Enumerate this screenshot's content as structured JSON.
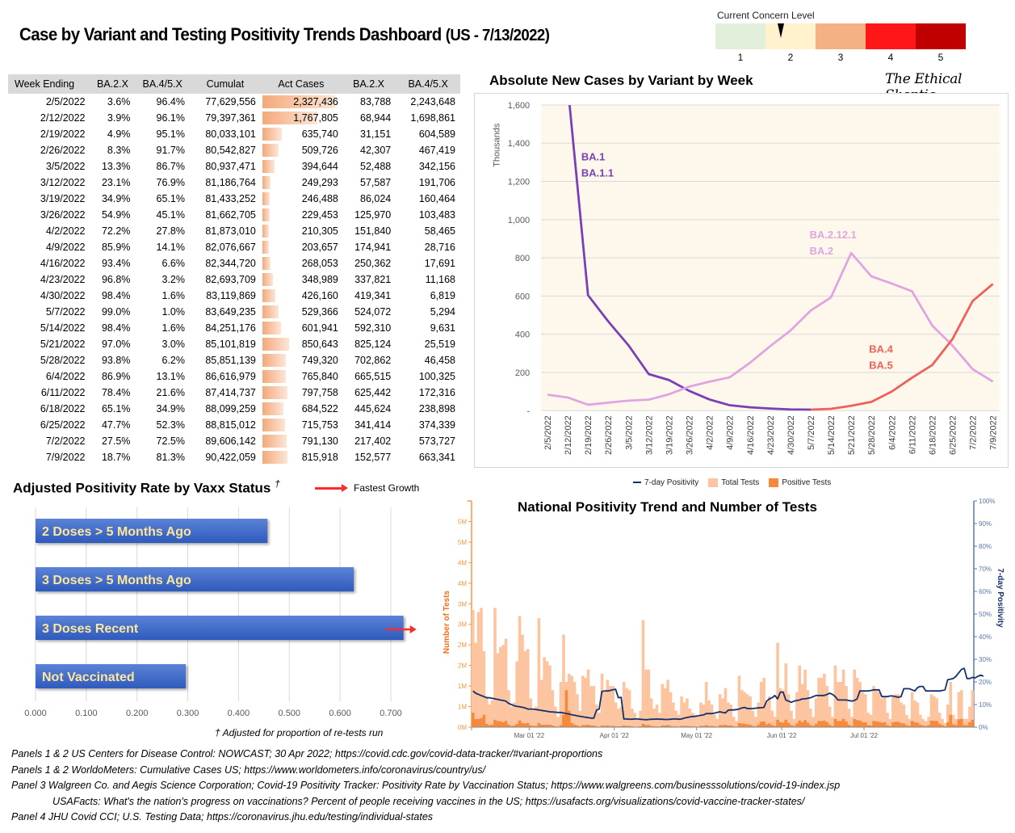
{
  "header": {
    "title": "Case by Variant and Testing Positivity Trends Dashboard",
    "title_suffix": "(US - 7/13/2022)"
  },
  "concern": {
    "label": "Current Concern Level",
    "levels": [
      "1",
      "2",
      "3",
      "4",
      "5"
    ],
    "colors": [
      "#e2efda",
      "#fff2cc",
      "#f4b183",
      "#ff1616",
      "#c00000"
    ],
    "current_level": 2,
    "marker_value": 1.8
  },
  "table": {
    "headers": [
      "Week Ending",
      "BA.2.X",
      "BA.4/5.X",
      "Cumulat",
      "Act Cases",
      "BA.2.X",
      "BA.4/5.X"
    ],
    "databar_max": 2327436,
    "rows": [
      [
        "2/5/2022",
        "3.6%",
        "96.4%",
        "77,629,556",
        "2,327,436",
        "83,788",
        "2,243,648"
      ],
      [
        "2/12/2022",
        "3.9%",
        "96.1%",
        "79,397,361",
        "1,767,805",
        "68,944",
        "1,698,861"
      ],
      [
        "2/19/2022",
        "4.9%",
        "95.1%",
        "80,033,101",
        "635,740",
        "31,151",
        "604,589"
      ],
      [
        "2/26/2022",
        "8.3%",
        "91.7%",
        "80,542,827",
        "509,726",
        "42,307",
        "467,419"
      ],
      [
        "3/5/2022",
        "13.3%",
        "86.7%",
        "80,937,471",
        "394,644",
        "52,488",
        "342,156"
      ],
      [
        "3/12/2022",
        "23.1%",
        "76.9%",
        "81,186,764",
        "249,293",
        "57,587",
        "191,706"
      ],
      [
        "3/19/2022",
        "34.9%",
        "65.1%",
        "81,433,252",
        "246,488",
        "86,024",
        "160,464"
      ],
      [
        "3/26/2022",
        "54.9%",
        "45.1%",
        "81,662,705",
        "229,453",
        "125,970",
        "103,483"
      ],
      [
        "4/2/2022",
        "72.2%",
        "27.8%",
        "81,873,010",
        "210,305",
        "151,840",
        "58,465"
      ],
      [
        "4/9/2022",
        "85.9%",
        "14.1%",
        "82,076,667",
        "203,657",
        "174,941",
        "28,716"
      ],
      [
        "4/16/2022",
        "93.4%",
        "6.6%",
        "82,344,720",
        "268,053",
        "250,362",
        "17,691"
      ],
      [
        "4/23/2022",
        "96.8%",
        "3.2%",
        "82,693,709",
        "348,989",
        "337,821",
        "11,168"
      ],
      [
        "4/30/2022",
        "98.4%",
        "1.6%",
        "83,119,869",
        "426,160",
        "419,341",
        "6,819"
      ],
      [
        "5/7/2022",
        "99.0%",
        "1.0%",
        "83,649,235",
        "529,366",
        "524,072",
        "5,294"
      ],
      [
        "5/14/2022",
        "98.4%",
        "1.6%",
        "84,251,176",
        "601,941",
        "592,310",
        "9,631"
      ],
      [
        "5/21/2022",
        "97.0%",
        "3.0%",
        "85,101,819",
        "850,643",
        "825,124",
        "25,519"
      ],
      [
        "5/28/2022",
        "93.8%",
        "6.2%",
        "85,851,139",
        "749,320",
        "702,862",
        "46,458"
      ],
      [
        "6/4/2022",
        "86.9%",
        "13.1%",
        "86,616,979",
        "765,840",
        "665,515",
        "100,325"
      ],
      [
        "6/11/2022",
        "78.4%",
        "21.6%",
        "87,414,737",
        "797,758",
        "625,442",
        "172,316"
      ],
      [
        "6/18/2022",
        "65.1%",
        "34.9%",
        "88,099,259",
        "684,522",
        "445,624",
        "238,898"
      ],
      [
        "6/25/2022",
        "47.7%",
        "52.3%",
        "88,815,012",
        "715,753",
        "341,414",
        "374,339"
      ],
      [
        "7/2/2022",
        "27.5%",
        "72.5%",
        "89,606,142",
        "791,130",
        "217,402",
        "573,727"
      ],
      [
        "7/9/2022",
        "18.7%",
        "81.3%",
        "90,422,059",
        "815,918",
        "152,577",
        "663,341"
      ]
    ]
  },
  "logo": "The Ethical Skeptic",
  "positivity_panel": {
    "title": "Adjusted Positivity Rate by Vaxx Status",
    "dagger": "†",
    "legend_label": "Fastest Growth",
    "footnote": "† Adjusted for proportion of re-tests run"
  },
  "testing_panel": {
    "legend": [
      "7-day Positivity",
      "Total Tests",
      "Positive Tests"
    ]
  },
  "sources": [
    "Panels 1 & 2  US Centers for Disease Control: NOWCAST; 30 Apr 2022; https://covid.cdc.gov/covid-data-tracker/#variant-proportions",
    "Panels 1 & 2  WorldoMeters: Cumulative Cases US; https://www.worldometers.info/coronavirus/country/us/",
    "Panel 3  Walgreen Co. and Aegis Science Corporation; Covid-19 Positivity Tracker: Positivity Rate by Vaccination Status; https://www.walgreens.com/businesssolutions/covid-19-index.jsp",
    "USAFacts: What's the nation's progress on vaccinations? Percent of people receiving vaccines in the US; https://usafacts.org/visualizations/covid-vaccine-tracker-states/",
    "Panel 4  JHU Covid CCI; U.S. Testing Data; https://coronavirus.jhu.edu/testing/individual-states"
  ],
  "chart_data": [
    {
      "type": "line",
      "title": "Absolute New Cases by Variant by Week",
      "ylabel": "Thousands",
      "ylim": [
        0,
        1600
      ],
      "yticks": [
        0,
        200,
        400,
        600,
        800,
        1000,
        1200,
        1400,
        1600
      ],
      "ytick_labels": [
        "-",
        "200",
        "400",
        "600",
        "800",
        "1,000",
        "1,200",
        "1,400",
        "1,600"
      ],
      "grid": true,
      "x": [
        "2/5/2022",
        "2/12/2022",
        "2/19/2022",
        "2/26/2022",
        "3/5/2022",
        "3/12/2022",
        "3/19/2022",
        "3/26/2022",
        "4/2/2022",
        "4/9/2022",
        "4/16/2022",
        "4/23/2022",
        "4/30/2022",
        "5/7/2022",
        "5/14/2022",
        "5/21/2022",
        "5/28/2022",
        "6/4/2022",
        "6/11/2022",
        "6/18/2022",
        "6/25/2022",
        "7/2/2022",
        "7/9/2022"
      ],
      "series": [
        {
          "name": "BA.1 / BA.1.1",
          "label_lines": [
            "BA.1",
            "BA.1.1"
          ],
          "color": "#7b3fb5",
          "values": [
            2243.6,
            1698.9,
            604.6,
            467.4,
            342.2,
            191.7,
            160.5,
            103.5,
            58.5,
            28.7,
            17.7,
            11.2,
            6.8,
            5.3,
            null,
            null,
            null,
            null,
            null,
            null,
            null,
            null,
            null
          ]
        },
        {
          "name": "BA.2.12.1 / BA.2",
          "label_lines": [
            "BA.2.12.1",
            "BA.2"
          ],
          "color": "#e0a4e0",
          "values": [
            83.8,
            68.9,
            31.2,
            42.3,
            52.5,
            57.6,
            86.0,
            126.0,
            151.8,
            174.9,
            250.4,
            337.8,
            419.3,
            524.1,
            592.3,
            825.1,
            702.9,
            665.5,
            625.4,
            445.6,
            341.4,
            217.4,
            152.6
          ]
        },
        {
          "name": "BA.4 / BA.5",
          "label_lines": [
            "BA.4",
            "BA.5"
          ],
          "color": "#f0605a",
          "values": [
            null,
            null,
            null,
            null,
            null,
            null,
            null,
            null,
            null,
            null,
            null,
            null,
            null,
            5.3,
            9.6,
            25.5,
            46.5,
            100.3,
            172.3,
            238.9,
            374.3,
            573.7,
            663.3
          ]
        }
      ]
    },
    {
      "type": "bar",
      "orientation": "horizontal",
      "title": "Adjusted Positivity Rate by Vaxx Status",
      "categories": [
        "2 Doses > 5 Months Ago",
        "3 Doses > 5 Months Ago",
        "3 Doses Recent",
        "Not Vaccinated"
      ],
      "values": [
        0.457,
        0.627,
        0.725,
        0.296
      ],
      "fastest_growth": "3 Doses Recent",
      "xlim": [
        0,
        0.75
      ],
      "xticks": [
        "0.000",
        "0.100",
        "0.200",
        "0.300",
        "0.400",
        "0.500",
        "0.600",
        "0.700"
      ],
      "grid": true,
      "bar_color": "#3a66c4",
      "label_color": "#ffe699"
    },
    {
      "type": "bar",
      "title": "National Positivity Trend and Number of Tests",
      "ylabel_left": "Number of Tests",
      "ylabel_right": "7-day Positivity",
      "left_tick_labels": [
        "0M",
        "1M",
        "1M",
        "2M",
        "2M",
        "3M",
        "3M",
        "4M",
        "4M",
        "5M",
        "5M"
      ],
      "left_ylim": [
        0,
        5.5
      ],
      "right_tick_labels": [
        "0%",
        "10%",
        "20%",
        "30%",
        "40%",
        "50%",
        "60%",
        "70%",
        "80%",
        "90%",
        "100%"
      ],
      "right_ylim": [
        0,
        100
      ],
      "x_tick_labels": [
        "Mar 01 '22",
        "Apr 01 '22",
        "May 01 '22",
        "Jun 01 '22",
        "Jul 01 '22"
      ],
      "x_start": "2022-02-08",
      "colors": {
        "total": "#fdc4a0",
        "positive": "#f58a3c",
        "positivity": "#16306b",
        "left_axis": "#f79646",
        "right_axis": "#5a76a8"
      },
      "legend_position": "top",
      "total_tests_millions": [
        2.85,
        2.05,
        2.8,
        2.9,
        1.85,
        0.75,
        0.55,
        0.65,
        2.9,
        1.8,
        1.95,
        2.0,
        2.15,
        0.9,
        0.5,
        0.6,
        1.6,
        2.7,
        2.25,
        1.85,
        1.9,
        0.7,
        0.45,
        0.5,
        2.65,
        1.15,
        1.7,
        1.6,
        1.5,
        0.9,
        0.5,
        0.25,
        1.1,
        2.25,
        1.1,
        1.3,
        1.25,
        1.1,
        0.8,
        0.4,
        1.25,
        1.2,
        1.4,
        1.0,
        1.0,
        0.55,
        0.35,
        1.3,
        0.85,
        1.15,
        1.0,
        1.0,
        0.6,
        0.45,
        0.5,
        1.1,
        0.95,
        0.9,
        0.45,
        0.35,
        0.2,
        0.4,
        2.6,
        1.4,
        1.4,
        0.7,
        0.45,
        0.55,
        0.35,
        1.05,
        0.95,
        1.15,
        0.85,
        0.6,
        0.4,
        0.3,
        0.75,
        0.6,
        0.7,
        0.45,
        0.35,
        0.3,
        0.25,
        0.6,
        0.55,
        1.1,
        0.65,
        0.55,
        0.3,
        0.2,
        0.8,
        0.7,
        0.95,
        0.6,
        0.55,
        0.25,
        0.15,
        1.25,
        0.9,
        0.85,
        0.8,
        0.75,
        0.4,
        0.25,
        0.6,
        1.1,
        1.2,
        0.6,
        0.75,
        0.4,
        0.25,
        2.05,
        0.95,
        0.9,
        1.55,
        0.8,
        0.4,
        0.2,
        0.85,
        1.5,
        1.05,
        1.4,
        0.9,
        0.45,
        0.25,
        0.7,
        1.2,
        1.2,
        1.3,
        1.0,
        0.5,
        0.25,
        1.5,
        1.1,
        1.1,
        1.4,
        1.0,
        0.45,
        0.25,
        1.4,
        1.2,
        1.1,
        0.85,
        0.8,
        0.35,
        0.3,
        1.0,
        0.9,
        0.85,
        0.7,
        0.75,
        0.35,
        0.2,
        0.75,
        0.8,
        0.8,
        0.6,
        0.55,
        0.3,
        0.2,
        0.85,
        0.65,
        0.6,
        0.3,
        0.2,
        0.15,
        0.25,
        0.8,
        0.75,
        0.7,
        0.35,
        0.2,
        0.1,
        0.55,
        1.1,
        0.3,
        0.2,
        0.85,
        0.9,
        0.2,
        0.2,
        0.5,
        0.9
      ],
      "positive_tests_millions": [
        0.35,
        0.2,
        0.2,
        0.22,
        0.3,
        0.08,
        0.05,
        0.06,
        0.18,
        0.15,
        0.14,
        0.12,
        0.15,
        0.06,
        0.03,
        0.04,
        0.08,
        0.16,
        0.1,
        0.09,
        0.1,
        0.04,
        0.03,
        0.03,
        0.1,
        0.06,
        0.06,
        0.06,
        0.06,
        0.04,
        0.02,
        0.01,
        0.05,
        0.3,
        0.9,
        0.4,
        0.1,
        0.06,
        0.04,
        0.02,
        0.05,
        0.05,
        0.06,
        0.04,
        0.04,
        0.02,
        0.01,
        0.04,
        0.03,
        0.04,
        0.03,
        0.03,
        0.02,
        0.02,
        0.02,
        0.04,
        0.03,
        0.03,
        0.02,
        0.01,
        0.01,
        0.02,
        0.08,
        0.05,
        0.05,
        0.03,
        0.02,
        0.02,
        0.01,
        0.04,
        0.04,
        0.05,
        0.03,
        0.02,
        0.02,
        0.01,
        0.03,
        0.03,
        0.03,
        0.02,
        0.02,
        0.01,
        0.01,
        0.03,
        0.03,
        0.05,
        0.03,
        0.03,
        0.02,
        0.01,
        0.05,
        0.05,
        0.06,
        0.04,
        0.04,
        0.02,
        0.01,
        0.1,
        0.09,
        0.08,
        0.07,
        0.06,
        0.03,
        0.02,
        0.06,
        0.13,
        0.14,
        0.07,
        0.09,
        0.05,
        0.03,
        0.18,
        0.12,
        0.11,
        0.18,
        0.1,
        0.05,
        0.03,
        0.09,
        0.16,
        0.12,
        0.17,
        0.11,
        0.05,
        0.03,
        0.08,
        0.15,
        0.15,
        0.16,
        0.12,
        0.06,
        0.03,
        0.2,
        0.15,
        0.15,
        0.2,
        0.14,
        0.06,
        0.03,
        0.2,
        0.17,
        0.16,
        0.12,
        0.12,
        0.05,
        0.04,
        0.15,
        0.14,
        0.13,
        0.11,
        0.12,
        0.05,
        0.03,
        0.12,
        0.13,
        0.13,
        0.1,
        0.09,
        0.05,
        0.03,
        0.15,
        0.12,
        0.11,
        0.06,
        0.04,
        0.03,
        0.05,
        0.16,
        0.15,
        0.15,
        0.08,
        0.05,
        0.02,
        0.12,
        0.3,
        0.07,
        0.05,
        0.19,
        0.2,
        0.05,
        0.05,
        0.12,
        0.18
      ],
      "positivity_pct": [
        16,
        15,
        14.5,
        14,
        13.5,
        13,
        13,
        12.8,
        12.5,
        12.3,
        12,
        11.8,
        11.5,
        10.5,
        10,
        9.5,
        9.2,
        9,
        8.8,
        8.5,
        8,
        8,
        8,
        7.8,
        7.6,
        7.4,
        7.2,
        7,
        6.8,
        6.7,
        6.6,
        6.5,
        6.5,
        6.3,
        6,
        5.8,
        5.5,
        5.3,
        5,
        4.8,
        4.6,
        4.4,
        4.2,
        4,
        4,
        7.5,
        8,
        15.8,
        16,
        16,
        16.2,
        16.5,
        16.8,
        13,
        13.2,
        3.6,
        3.6,
        3.5,
        3.5,
        3.6,
        3.6,
        3.5,
        3.4,
        3.3,
        3.4,
        3.5,
        3.5,
        3.6,
        3.5,
        3.5,
        3.4,
        3.4,
        3.5,
        3.6,
        3.6,
        3.5,
        3.6,
        4,
        4.3,
        4.5,
        4.7,
        4.8,
        5,
        5.2,
        5.4,
        6,
        6,
        6,
        6.2,
        6.5,
        6.8,
        6.5,
        6.3,
        7.5,
        7.6,
        7.6,
        7.8,
        8,
        8.5,
        8.7,
        8.2,
        8.2,
        8.2,
        8.4,
        8.5,
        8.6,
        8.7,
        11.5,
        12.5,
        13,
        14,
        12.5,
        15.5,
        15.5,
        12,
        11.5,
        11,
        11.5,
        11.8,
        12,
        12.5,
        12.5,
        12.8,
        13,
        13.5,
        14,
        14,
        14,
        14,
        14.5,
        15,
        14.5,
        13.5,
        12,
        12,
        12,
        12,
        11.8,
        11.5,
        11.8,
        12.5,
        16,
        16,
        16,
        16,
        16.2,
        16.5,
        16.5,
        16.5,
        13.5,
        13.5,
        13.5,
        13.8,
        13.8,
        13.5,
        13.2,
        13.5,
        17,
        17,
        17,
        16.5,
        16,
        17.5,
        18,
        18,
        16,
        16,
        16,
        16,
        16,
        16,
        16.2,
        16.5,
        21,
        21.2,
        21.5,
        22.5,
        24,
        25.5,
        26,
        21.5,
        21.5,
        22,
        21.8,
        22.5,
        23,
        22.5
      ]
    }
  ]
}
